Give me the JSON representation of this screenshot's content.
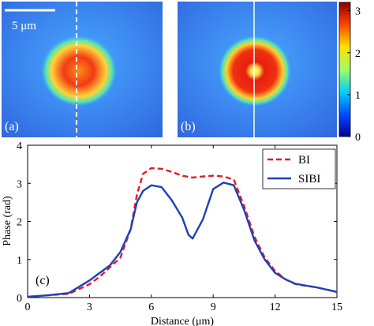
{
  "panels": {
    "a": {
      "label": "(a)"
    },
    "b": {
      "label": "(b)"
    },
    "c": {
      "label": "(c)"
    }
  },
  "scale_bar": {
    "label": "5 μm"
  },
  "colorbar": {
    "ticks": [
      "0",
      "1",
      "2",
      "3"
    ],
    "range": [
      0,
      3.2
    ],
    "colors": [
      "#00008f",
      "#0050ff",
      "#00dfff",
      "#9fff60",
      "#ffe000",
      "#ff5000",
      "#9a0000"
    ]
  },
  "images": {
    "background_color": "#3f8fef",
    "ring_color": "#ee2a10",
    "center_color_b": "#ffff60",
    "profile_line_a": "dashed",
    "profile_line_b": "solid"
  },
  "chart_data": {
    "type": "line",
    "xlabel": "Distance (μm)",
    "ylabel": "Phase (rad)",
    "xlim": [
      0,
      15
    ],
    "ylim": [
      0,
      4
    ],
    "xticks": [
      0,
      3,
      6,
      9,
      12,
      15
    ],
    "yticks": [
      0,
      1,
      2,
      3,
      4
    ],
    "grid": false,
    "legend_position": "top-right",
    "series": [
      {
        "name": "BI",
        "color": "#e21d24",
        "style": "dashed",
        "x": [
          0,
          1,
          2,
          3,
          3.5,
          4,
          4.5,
          5,
          5.3,
          5.6,
          6,
          6.5,
          7,
          7.5,
          8,
          8.5,
          9,
          9.5,
          10,
          10.5,
          11,
          11.5,
          12,
          12.5,
          13,
          14,
          15
        ],
        "y": [
          0.02,
          0.06,
          0.1,
          0.35,
          0.55,
          0.8,
          1.05,
          1.8,
          2.7,
          3.25,
          3.4,
          3.38,
          3.3,
          3.2,
          3.15,
          3.18,
          3.2,
          3.18,
          3.1,
          2.4,
          1.6,
          1.05,
          0.7,
          0.48,
          0.35,
          0.27,
          0.15
        ]
      },
      {
        "name": "SIBI",
        "color": "#1f3fb8",
        "style": "solid",
        "x": [
          0,
          1,
          2,
          3,
          3.5,
          4,
          4.5,
          5,
          5.3,
          5.6,
          6,
          6.5,
          7,
          7.5,
          7.8,
          8,
          8.5,
          9,
          9.5,
          10,
          10.5,
          11,
          11.5,
          12,
          12.5,
          13,
          14,
          15
        ],
        "y": [
          0.02,
          0.06,
          0.12,
          0.45,
          0.65,
          0.85,
          1.2,
          1.8,
          2.5,
          2.8,
          2.95,
          2.9,
          2.55,
          2.1,
          1.65,
          1.55,
          2.05,
          2.85,
          3.02,
          2.95,
          2.3,
          1.5,
          1.0,
          0.65,
          0.48,
          0.36,
          0.27,
          0.15
        ]
      }
    ]
  }
}
